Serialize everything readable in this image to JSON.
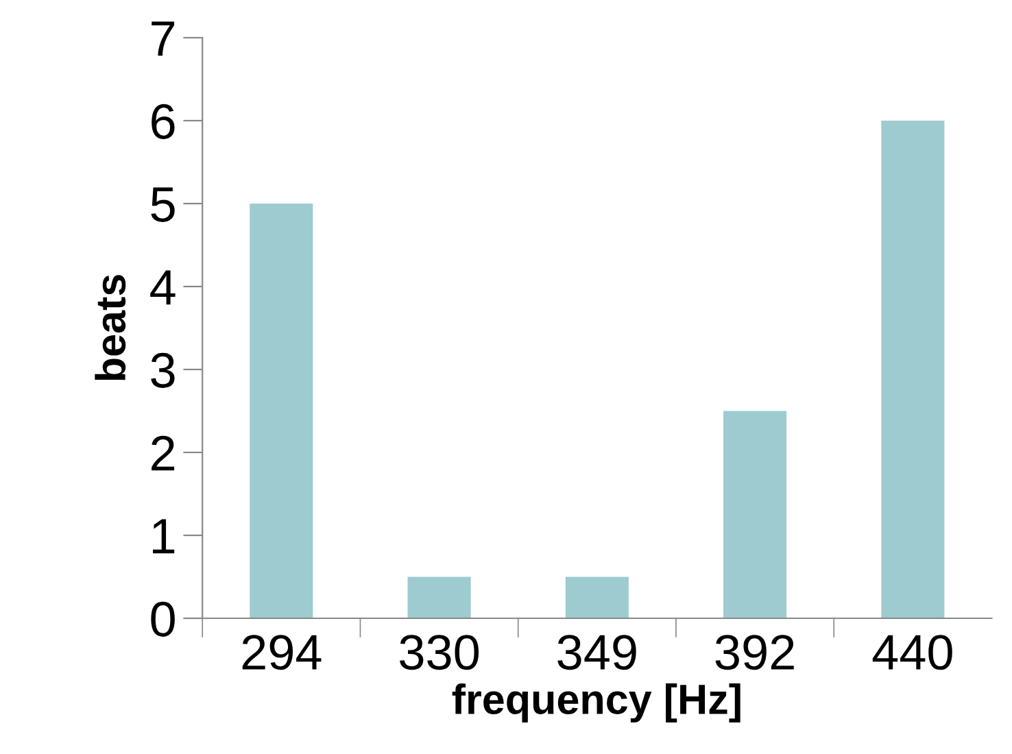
{
  "chart_data": {
    "type": "bar",
    "xlabel": "frequency [Hz]",
    "ylabel": "beats",
    "categories": [
      "294",
      "330",
      "349",
      "392",
      "440"
    ],
    "values": [
      5,
      0.5,
      0.5,
      2.5,
      6
    ],
    "color": "#9ecbcf",
    "ylim": [
      0,
      7
    ],
    "yticks": [
      0,
      1,
      2,
      3,
      4,
      5,
      6,
      7
    ],
    "grid": false
  }
}
